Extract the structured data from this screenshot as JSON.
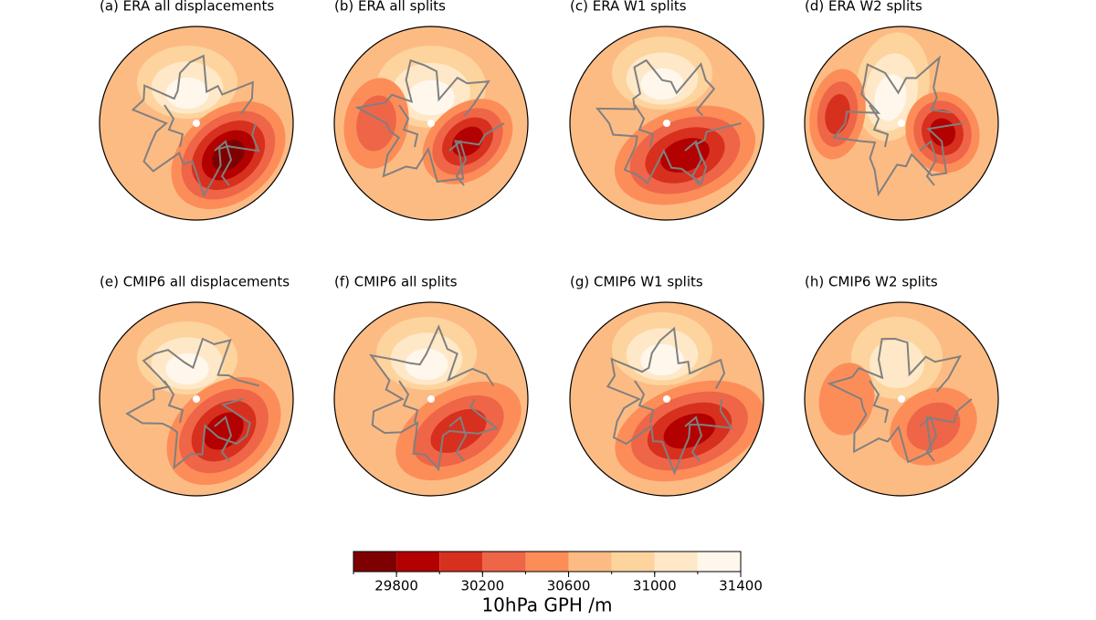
{
  "panels": [
    {
      "title": "(a) ERA all displacements"
    },
    {
      "title": "(b) ERA all splits"
    },
    {
      "title": "(c) ERA W1 splits"
    },
    {
      "title": "(d) ERA W2 splits"
    },
    {
      "title": "(e) CMIP6 all displacements"
    },
    {
      "title": "(f) CMIP6 all splits"
    },
    {
      "title": "(g) CMIP6 W1 splits"
    },
    {
      "title": "(h) CMIP6 W2 splits"
    }
  ],
  "colorbar": {
    "label": "10hPa GPH /m",
    "lim": [
      29600,
      31400
    ],
    "levels": [
      29600,
      29800,
      30000,
      30200,
      30400,
      30600,
      30800,
      31000,
      31200,
      31400
    ],
    "ticks": [
      29800,
      30200,
      30600,
      31000,
      31400
    ],
    "colors": [
      "#7f0000",
      "#b30000",
      "#d7301f",
      "#ef6548",
      "#fc8d59",
      "#fdbb84",
      "#fdd49e",
      "#fee8c8",
      "#fff7ec"
    ]
  }
}
